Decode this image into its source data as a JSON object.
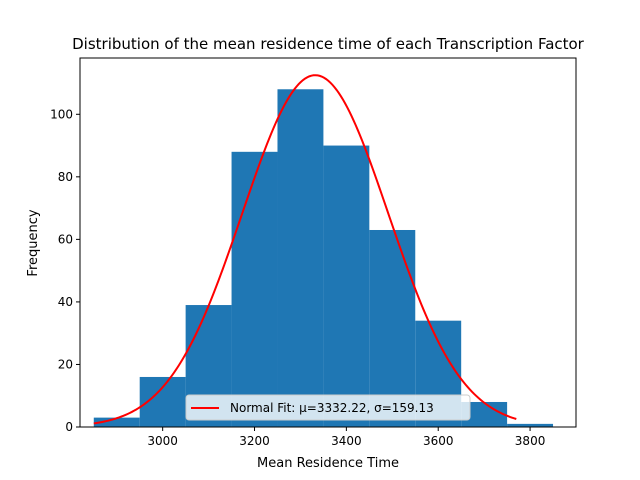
{
  "chart_data": {
    "type": "bar",
    "title": "Distribution of the mean residence time of each Transcription Factor",
    "xlabel": "Mean Residence Time",
    "ylabel": "Frequency",
    "xlim": [
      2820,
      3900
    ],
    "ylim": [
      0,
      118
    ],
    "x_ticks": [
      3000,
      3200,
      3400,
      3600,
      3800
    ],
    "y_ticks": [
      0,
      20,
      40,
      60,
      80,
      100
    ],
    "grid": false,
    "histogram": {
      "bin_edges": [
        2850,
        2950,
        3050,
        3150,
        3250,
        3350,
        3450,
        3550,
        3650,
        3750,
        3850
      ],
      "counts": [
        3,
        16,
        39,
        88,
        108,
        90,
        63,
        34,
        8,
        1
      ],
      "color": "#1f77b4"
    },
    "fit_curve": {
      "mu": 3332.22,
      "sigma": 159.13,
      "peak": 112.5,
      "x_range": [
        2850,
        3770
      ],
      "color": "#ff0000"
    },
    "legend": {
      "placement": "lower-center",
      "entries": [
        {
          "label": "Normal Fit: μ=3332.22, σ=159.13",
          "color": "#ff0000"
        }
      ]
    }
  }
}
